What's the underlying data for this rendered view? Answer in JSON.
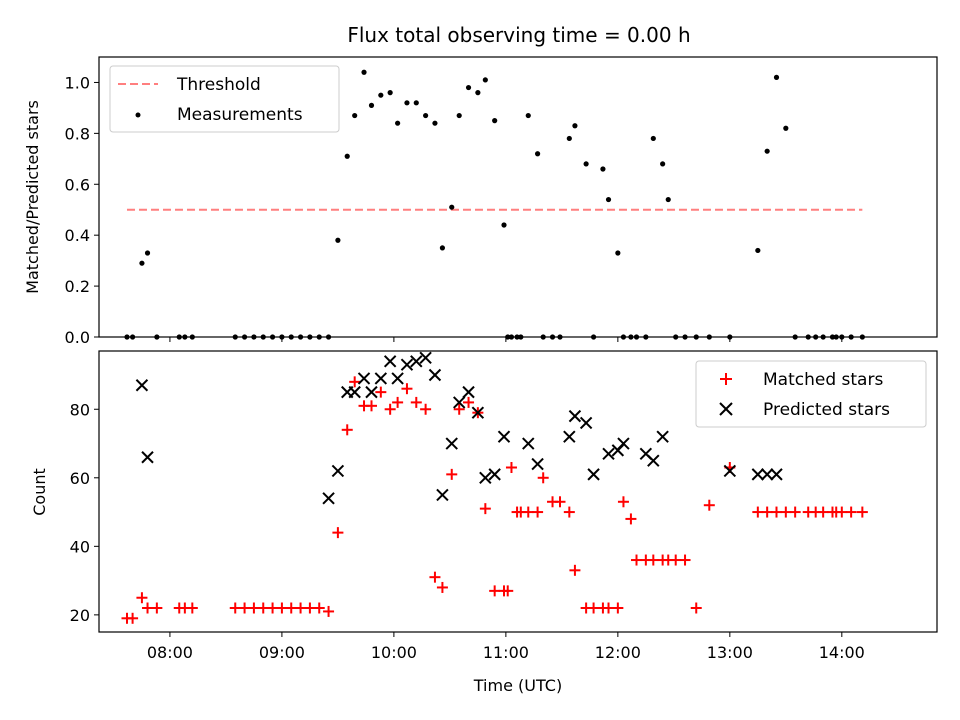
{
  "title": "Flux total observing time = 0.00 h",
  "colors": {
    "threshold": "#ff7f7f",
    "measurement": "#000000",
    "matched": "#ff0000",
    "predicted": "#000000"
  },
  "chart_data": [
    {
      "type": "scatter",
      "title": "Flux total observing time = 0.00 h",
      "ylabel": "Matched/Predicted stars",
      "xlabel": "",
      "xlim": [
        "07:22",
        "14:51"
      ],
      "ylim": [
        0,
        1.1
      ],
      "yticks": [
        0.0,
        0.2,
        0.4,
        0.6,
        0.8,
        1.0
      ],
      "yticklabels": [
        "0.0",
        "0.2",
        "0.4",
        "0.6",
        "0.8",
        "1.0"
      ],
      "xticks": [
        "08:00",
        "09:00",
        "10:00",
        "11:00",
        "12:00",
        "13:00",
        "14:00"
      ],
      "legend": {
        "position": "upper-left",
        "entries": [
          "Threshold",
          "Measurements"
        ]
      },
      "threshold": {
        "name": "Threshold",
        "y": 0.5,
        "x_start": "07:37",
        "x_end": "14:11"
      },
      "series": [
        {
          "name": "Measurements",
          "x": [
            "07:37",
            "07:40",
            "07:45",
            "07:48",
            "07:53",
            "08:05",
            "08:08",
            "08:12",
            "08:35",
            "08:40",
            "08:45",
            "08:50",
            "08:55",
            "09:00",
            "09:05",
            "09:10",
            "09:15",
            "09:20",
            "09:25",
            "09:30",
            "09:35",
            "09:39",
            "09:44",
            "09:48",
            "09:53",
            "09:58",
            "10:02",
            "10:07",
            "10:12",
            "10:17",
            "10:22",
            "10:26",
            "10:31",
            "10:35",
            "10:40",
            "10:45",
            "10:49",
            "10:54",
            "10:59",
            "11:01",
            "11:03",
            "11:06",
            "11:08",
            "11:12",
            "11:17",
            "11:20",
            "11:25",
            "11:29",
            "11:34",
            "11:37",
            "11:43",
            "11:47",
            "11:52",
            "11:55",
            "12:00",
            "12:03",
            "12:07",
            "12:10",
            "12:15",
            "12:19",
            "12:24",
            "12:27",
            "12:31",
            "12:36",
            "12:42",
            "12:49",
            "13:00",
            "13:15",
            "13:20",
            "13:25",
            "13:30",
            "13:35",
            "13:42",
            "13:46",
            "13:50",
            "13:55",
            "13:57",
            "14:00",
            "14:05",
            "14:11"
          ],
          "y": [
            0.0,
            0.0,
            0.29,
            0.33,
            0.0,
            0.0,
            0.0,
            0.0,
            0.0,
            0.0,
            0.0,
            0.0,
            0.0,
            0.0,
            0.0,
            0.0,
            0.0,
            0.0,
            0.0,
            0.38,
            0.71,
            0.87,
            1.04,
            0.91,
            0.95,
            0.96,
            0.84,
            0.92,
            0.92,
            0.87,
            0.84,
            0.35,
            0.51,
            0.87,
            0.98,
            0.96,
            1.01,
            0.85,
            0.44,
            0.0,
            0.0,
            0.0,
            0.0,
            0.87,
            0.72,
            0.0,
            0.0,
            0.0,
            0.78,
            0.83,
            0.68,
            0.0,
            0.66,
            0.54,
            0.33,
            0.0,
            0.0,
            0.0,
            0.0,
            0.78,
            0.68,
            0.54,
            0.0,
            0.0,
            0.0,
            0.0,
            0.0,
            0.34,
            0.73,
            1.02,
            0.82,
            0.0,
            0.0,
            0.0,
            0.0,
            0.0,
            0.0,
            0.0,
            0.0,
            0.0
          ]
        }
      ]
    },
    {
      "type": "scatter",
      "xlabel": "Time (UTC)",
      "ylabel": "Count",
      "xlim": [
        "07:22",
        "14:51"
      ],
      "ylim": [
        15,
        97
      ],
      "yticks": [
        20,
        40,
        60,
        80
      ],
      "xticks": [
        "08:00",
        "09:00",
        "10:00",
        "11:00",
        "12:00",
        "13:00",
        "14:00"
      ],
      "xticklabels": [
        "08:00",
        "09:00",
        "10:00",
        "11:00",
        "12:00",
        "13:00",
        "14:00"
      ],
      "legend": {
        "position": "upper-right",
        "entries": [
          "Matched stars",
          "Predicted stars"
        ]
      },
      "series": [
        {
          "name": "Matched stars",
          "marker": "plus",
          "x": [
            "07:37",
            "07:40",
            "07:45",
            "07:48",
            "07:53",
            "08:05",
            "08:08",
            "08:12",
            "08:35",
            "08:40",
            "08:45",
            "08:50",
            "08:55",
            "09:00",
            "09:05",
            "09:10",
            "09:15",
            "09:20",
            "09:25",
            "09:30",
            "09:35",
            "09:39",
            "09:44",
            "09:48",
            "09:53",
            "09:58",
            "10:02",
            "10:07",
            "10:12",
            "10:17",
            "10:22",
            "10:26",
            "10:31",
            "10:35",
            "10:40",
            "10:45",
            "10:49",
            "10:54",
            "10:59",
            "11:01",
            "11:03",
            "11:06",
            "11:08",
            "11:12",
            "11:17",
            "11:20",
            "11:25",
            "11:29",
            "11:34",
            "11:37",
            "11:43",
            "11:47",
            "11:52",
            "11:55",
            "12:00",
            "12:03",
            "12:07",
            "12:10",
            "12:15",
            "12:19",
            "12:24",
            "12:27",
            "12:31",
            "12:36",
            "12:42",
            "12:49",
            "13:00",
            "13:15",
            "13:20",
            "13:25",
            "13:30",
            "13:35",
            "13:42",
            "13:46",
            "13:50",
            "13:55",
            "13:57",
            "14:00",
            "14:05",
            "14:11"
          ],
          "y": [
            19,
            19,
            25,
            22,
            22,
            22,
            22,
            22,
            22,
            22,
            22,
            22,
            22,
            22,
            22,
            22,
            22,
            22,
            21,
            44,
            74,
            88,
            81,
            81,
            85,
            80,
            82,
            86,
            82,
            80,
            31,
            28,
            61,
            80,
            82,
            79,
            51,
            27,
            27,
            27,
            63,
            50,
            50,
            50,
            50,
            60,
            53,
            53,
            50,
            33,
            22,
            22,
            22,
            22,
            22,
            53,
            48,
            36,
            36,
            36,
            36,
            36,
            36,
            36,
            22,
            52,
            63,
            50,
            50,
            50,
            50,
            50,
            50,
            50,
            50,
            50,
            50,
            50,
            50,
            50
          ]
        },
        {
          "name": "Predicted stars",
          "marker": "x",
          "x": [
            "07:45",
            "07:48",
            "09:25",
            "09:30",
            "09:35",
            "09:39",
            "09:44",
            "09:48",
            "09:53",
            "09:58",
            "10:02",
            "10:07",
            "10:12",
            "10:17",
            "10:22",
            "10:26",
            "10:31",
            "10:35",
            "10:40",
            "10:45",
            "10:49",
            "10:54",
            "10:59",
            "11:12",
            "11:17",
            "11:34",
            "11:37",
            "11:43",
            "11:47",
            "11:55",
            "12:00",
            "12:03",
            "12:15",
            "12:19",
            "12:24",
            "13:00",
            "13:15",
            "13:20",
            "13:25"
          ],
          "y": [
            87,
            66,
            54,
            62,
            85,
            85,
            89,
            85,
            89,
            94,
            89,
            93,
            94,
            95,
            90,
            55,
            70,
            82,
            85,
            79,
            60,
            61,
            72,
            70,
            64,
            72,
            78,
            76,
            61,
            67,
            68,
            70,
            67,
            65,
            72,
            62,
            61,
            61,
            61
          ]
        }
      ]
    }
  ]
}
